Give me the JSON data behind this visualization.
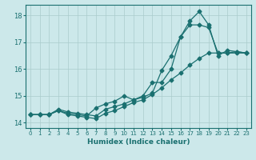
{
  "xlabel": "Humidex (Indice chaleur)",
  "xlim": [
    -0.5,
    23.5
  ],
  "ylim": [
    13.8,
    18.4
  ],
  "yticks": [
    14,
    15,
    16,
    17,
    18
  ],
  "xticks": [
    0,
    1,
    2,
    3,
    4,
    5,
    6,
    7,
    8,
    9,
    10,
    11,
    12,
    13,
    14,
    15,
    16,
    17,
    18,
    19,
    20,
    21,
    22,
    23
  ],
  "background_color": "#cce8ea",
  "grid_color": "#aacccc",
  "line_color": "#1a7070",
  "line1_x": [
    0,
    1,
    2,
    3,
    4,
    5,
    6,
    7,
    8,
    9,
    10,
    11,
    12,
    13,
    14,
    15,
    16,
    17,
    18,
    19,
    20,
    21,
    22,
    23
  ],
  "line1_y": [
    14.3,
    14.3,
    14.3,
    14.45,
    14.3,
    14.25,
    14.2,
    14.15,
    14.35,
    14.45,
    14.6,
    14.75,
    14.85,
    15.05,
    15.3,
    15.6,
    15.85,
    16.15,
    16.4,
    16.6,
    16.6,
    16.6,
    16.6,
    16.6
  ],
  "line2_x": [
    0,
    1,
    2,
    3,
    4,
    5,
    6,
    7,
    8,
    9,
    10,
    11,
    12,
    13,
    14,
    15,
    16,
    17,
    18,
    19,
    20,
    21,
    22,
    23
  ],
  "line2_y": [
    14.3,
    14.3,
    14.3,
    14.45,
    14.35,
    14.3,
    14.25,
    14.55,
    14.7,
    14.8,
    15.0,
    14.85,
    15.0,
    15.5,
    15.5,
    16.0,
    17.2,
    17.65,
    17.65,
    17.55,
    16.6,
    16.6,
    16.65,
    16.6
  ],
  "line3_x": [
    0,
    1,
    2,
    3,
    4,
    5,
    6,
    7,
    8,
    9,
    10,
    11,
    12,
    13,
    14,
    15,
    16,
    17,
    18,
    19,
    20,
    21,
    22,
    23
  ],
  "line3_y": [
    14.3,
    14.3,
    14.3,
    14.5,
    14.4,
    14.35,
    14.3,
    14.25,
    14.5,
    14.6,
    14.7,
    14.85,
    14.95,
    15.1,
    15.95,
    16.5,
    17.2,
    17.8,
    18.15,
    17.65,
    16.5,
    16.7,
    16.65,
    16.6
  ]
}
